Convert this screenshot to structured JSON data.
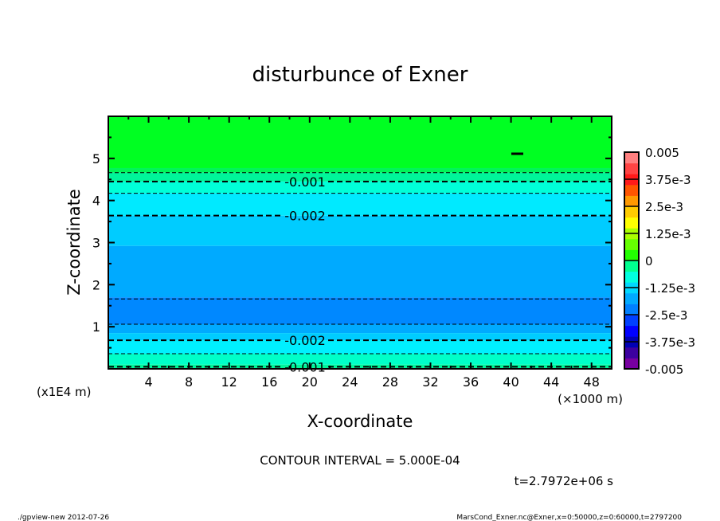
{
  "chart_data": {
    "type": "heatmap",
    "title": "disturbunce of Exner",
    "xlabel": "X-coordinate",
    "ylabel": "Z-coordinate",
    "x_units": "(×1000 m)",
    "y_units": "(x1E4 m)",
    "xlim": [
      0,
      50
    ],
    "ylim": [
      0,
      6
    ],
    "x_ticks": [
      4,
      8,
      12,
      16,
      20,
      24,
      28,
      32,
      36,
      40,
      44,
      48
    ],
    "y_ticks": [
      1,
      2,
      3,
      4,
      5
    ],
    "bands": [
      {
        "z0": 4.77,
        "z1": 6.0,
        "color": "#00ff22"
      },
      {
        "z0": 4.66,
        "z1": 4.77,
        "color": "#00f558"
      },
      {
        "z0": 4.45,
        "z1": 4.66,
        "color": "#00f59a"
      },
      {
        "z0": 4.17,
        "z1": 4.45,
        "color": "#00ffd8"
      },
      {
        "z0": 3.64,
        "z1": 4.17,
        "color": "#00eaff"
      },
      {
        "z0": 2.92,
        "z1": 3.64,
        "color": "#00ccff"
      },
      {
        "z0": 1.7,
        "z1": 2.92,
        "color": "#00aaff"
      },
      {
        "z0": 1.06,
        "z1": 1.7,
        "color": "#0088ff"
      },
      {
        "z0": 0.85,
        "z1": 1.06,
        "color": "#00aaff"
      },
      {
        "z0": 0.68,
        "z1": 0.85,
        "color": "#00ccff"
      },
      {
        "z0": 0.36,
        "z1": 0.68,
        "color": "#00f0ff"
      },
      {
        "z0": 0.1,
        "z1": 0.36,
        "color": "#00ffc8"
      },
      {
        "z0": 0.0,
        "z1": 0.1,
        "color": "#00f59a"
      }
    ],
    "contours": [
      {
        "z": 4.66,
        "value": -0.0005,
        "thick": false
      },
      {
        "z": 4.45,
        "value": -0.001,
        "thick": true,
        "label": "-0.001"
      },
      {
        "z": 4.17,
        "value": -0.0015,
        "thick": false
      },
      {
        "z": 3.64,
        "value": -0.002,
        "thick": true,
        "label": "-0.002"
      },
      {
        "z": 1.66,
        "value": -0.003,
        "thick": false
      },
      {
        "z": 1.06,
        "value": -0.003,
        "thick": false
      },
      {
        "z": 0.68,
        "value": -0.002,
        "thick": true,
        "label": "-0.002"
      },
      {
        "z": 0.36,
        "value": -0.0015,
        "thick": false
      },
      {
        "z": 0.05,
        "value": -0.001,
        "thick": true,
        "label": "-0.001"
      }
    ],
    "colorbar": {
      "range": [
        -0.005,
        0.005
      ],
      "labels": [
        "0.005",
        "3.75e-3",
        "2.5e-3",
        "1.25e-3",
        "0",
        "-1.25e-3",
        "-2.5e-3",
        "-3.75e-3",
        "-0.005"
      ],
      "colors": [
        "#7800a0",
        "#3c00a0",
        "#0000b4",
        "#0000ff",
        "#0040ff",
        "#0080ff",
        "#00aaff",
        "#00d8ff",
        "#00ffe0",
        "#00ff90",
        "#22ff00",
        "#66ff00",
        "#aaff00",
        "#ffff00",
        "#ffcc00",
        "#ff9900",
        "#ff5500",
        "#ff1a1a",
        "#ff4444",
        "#ff8080"
      ]
    },
    "contour_interval": "CONTOUR INTERVAL = 5.000E-04",
    "time": "t=2.7972e+06 s"
  },
  "footer": {
    "left": "./gpview-new  2012-07-26",
    "right": "MarsCond_Exner.nc@Exner,x=0:50000,z=0:60000,t=2797200"
  }
}
